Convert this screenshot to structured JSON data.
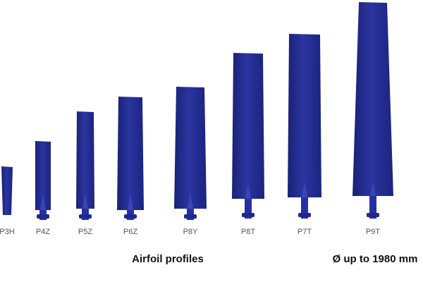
{
  "blades": [
    {
      "label": "P3H"
    },
    {
      "label": "P4Z"
    },
    {
      "label": "P5Z"
    },
    {
      "label": "P6Z"
    },
    {
      "label": "P8Y"
    },
    {
      "label": "P8T"
    },
    {
      "label": "P7T"
    },
    {
      "label": "P9T"
    }
  ],
  "caption": "Airfoil profiles",
  "note": "Ø up to 1980 mm"
}
